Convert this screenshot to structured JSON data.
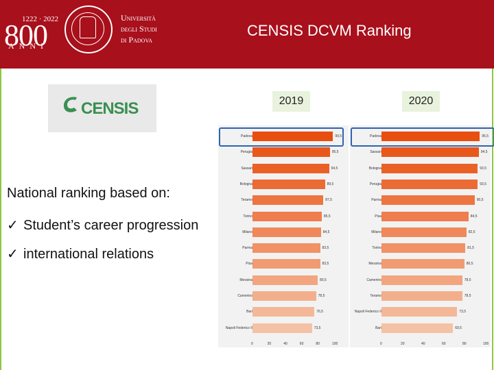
{
  "header": {
    "logo": {
      "years": "1222 · 2022",
      "number": "800",
      "anni": "ANNI"
    },
    "university": {
      "line1": "Università",
      "line2": "degli Studi",
      "line3": "di Padova"
    },
    "title": "CENSIS DCVM Ranking",
    "color": "#a8101c"
  },
  "censis_logo": {
    "text": "CENSIS",
    "color": "#3a8f52"
  },
  "content": {
    "lead": "National ranking based on:",
    "bullets": [
      "Student’s career progression",
      "international relations"
    ],
    "check_glyph": "ü"
  },
  "chart_data": [
    {
      "type": "bar",
      "year_label": "2019",
      "categories": [
        "Padova",
        "Perugia",
        "Sassari",
        "Bologna",
        "Teramo",
        "Torino",
        "Milano",
        "Parma",
        "Pisa",
        "Messina",
        "Camerino",
        "Bari",
        "Napoli Federico II"
      ],
      "values": [
        99.5,
        95.5,
        94.5,
        89.5,
        87.5,
        85.5,
        84.5,
        83.5,
        83.5,
        80.5,
        78.5,
        76.5,
        73.5
      ],
      "value_labels": [
        "99,5",
        "95,5",
        "94,5",
        "89,5",
        "87,5",
        "85,5",
        "84,5",
        "83,5",
        "83,5",
        "80,5",
        "78,5",
        "76,5",
        "73,5"
      ],
      "xlim": [
        0,
        100
      ],
      "xticks": [
        "0",
        "20",
        "40",
        "60",
        "80",
        "100"
      ],
      "highlight": "Padova"
    },
    {
      "type": "bar",
      "year_label": "2020",
      "categories": [
        "Padova",
        "Sassari",
        "Bologna",
        "Perugia",
        "Parma",
        "Pisa",
        "Milano",
        "Torino",
        "Messina",
        "Camerino",
        "Teramo",
        "Napoli Federico II",
        "Bari"
      ],
      "values": [
        95.5,
        94.5,
        93.5,
        93.5,
        90.5,
        84.5,
        82.5,
        81.5,
        80.5,
        78.5,
        78.5,
        73.5,
        69.5
      ],
      "value_labels": [
        "95,5",
        "94,5",
        "93,5",
        "93,5",
        "90,5",
        "84,5",
        "82,5",
        "81,5",
        "80,5",
        "78,5",
        "78,5",
        "73,5",
        "69,5"
      ],
      "xlim": [
        0,
        100
      ],
      "xticks": [
        "0",
        "20",
        "40",
        "60",
        "80",
        "100"
      ],
      "highlight": "Padova"
    }
  ],
  "bar_colors": [
    "#e84e0f",
    "#e9581b",
    "#ea6128",
    "#ec6b34",
    "#ed7541",
    "#ee7e4d",
    "#ef885a",
    "#f09266",
    "#f19b73",
    "#f2a57f",
    "#f3af8c",
    "#f4b898",
    "#f5c2a5"
  ],
  "highlight_color": "#2f63b0"
}
